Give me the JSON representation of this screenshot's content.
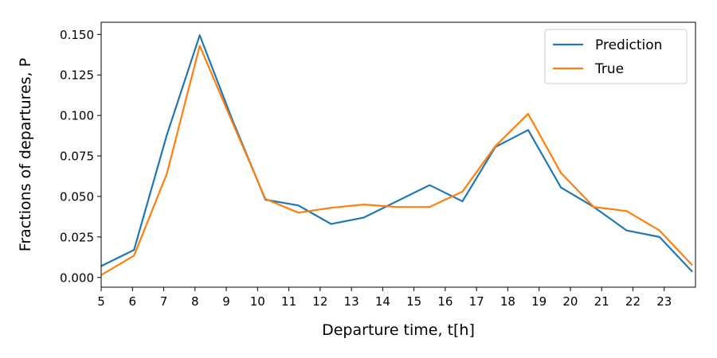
{
  "chart_data": {
    "type": "line",
    "xlabel": "Departure time, t[h]",
    "ylabel": "Fractions of departures, P",
    "xlim": [
      5,
      24
    ],
    "ylim": [
      -0.006,
      0.1575
    ],
    "xticks": [
      5,
      6,
      7,
      8,
      9,
      10,
      11,
      12,
      13,
      14,
      15,
      16,
      17,
      18,
      19,
      20,
      21,
      22,
      23
    ],
    "yticks": [
      0.0,
      0.025,
      0.05,
      0.075,
      0.1,
      0.125,
      0.15
    ],
    "ytick_labels": [
      "0.000",
      "0.025",
      "0.050",
      "0.075",
      "0.100",
      "0.125",
      "0.150"
    ],
    "x": [
      5.0,
      6.05,
      7.1,
      8.15,
      9.2,
      10.25,
      11.3,
      12.35,
      13.4,
      14.45,
      15.5,
      16.55,
      17.6,
      18.65,
      19.7,
      20.75,
      21.8,
      22.85,
      23.9
    ],
    "grid": false,
    "legend_position": "top-right",
    "series": [
      {
        "name": "Prediction",
        "color": "#1f77b4",
        "values": [
          0.007,
          0.017,
          0.088,
          0.1495,
          0.097,
          0.048,
          0.0445,
          0.033,
          0.037,
          0.047,
          0.057,
          0.047,
          0.0805,
          0.091,
          0.0555,
          0.0435,
          0.029,
          0.025,
          0.0035
        ]
      },
      {
        "name": "True",
        "color": "#ff7f0e",
        "values": [
          0.0015,
          0.0135,
          0.064,
          0.143,
          0.0955,
          0.0485,
          0.04,
          0.043,
          0.045,
          0.0435,
          0.0435,
          0.053,
          0.081,
          0.101,
          0.0645,
          0.0435,
          0.041,
          0.029,
          0.0075
        ]
      }
    ]
  }
}
